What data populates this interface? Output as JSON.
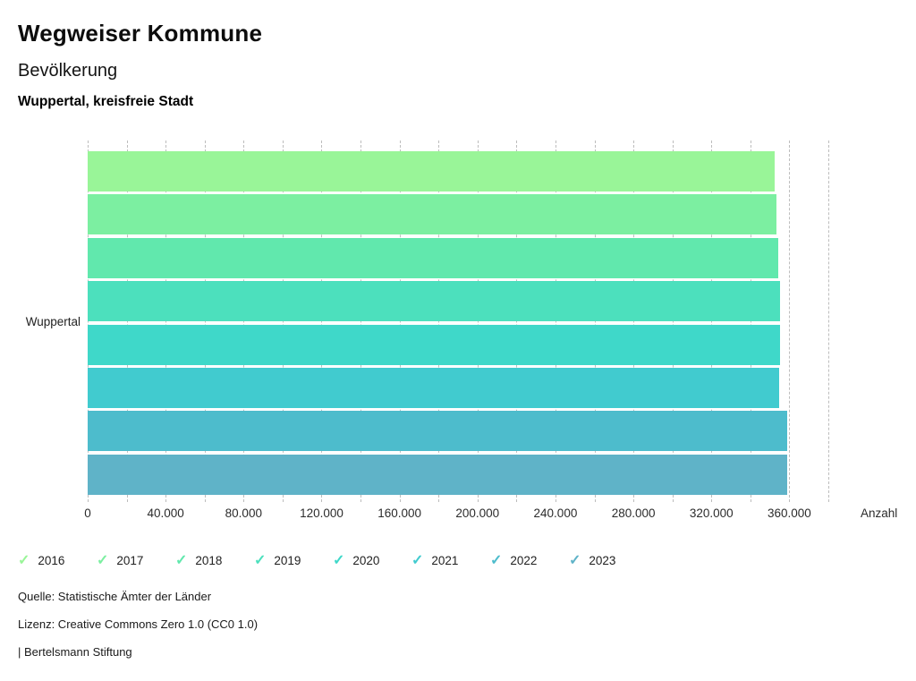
{
  "header": {
    "title": "Wegweiser Kommune",
    "subtitle": "Bevölkerung",
    "region": "Wuppertal, kreisfreie Stadt"
  },
  "chart_data": {
    "type": "bar",
    "orientation": "horizontal",
    "title": "Bevölkerung",
    "category": "Wuppertal",
    "series": [
      {
        "name": "2016",
        "value": 352400,
        "color": "#99f598"
      },
      {
        "name": "2017",
        "value": 353600,
        "color": "#7cefa1"
      },
      {
        "name": "2018",
        "value": 354400,
        "color": "#61e8ad"
      },
      {
        "name": "2019",
        "value": 355100,
        "color": "#4ce0bd"
      },
      {
        "name": "2020",
        "value": 355000,
        "color": "#3fd8c9"
      },
      {
        "name": "2021",
        "value": 354700,
        "color": "#41cbcf"
      },
      {
        "name": "2022",
        "value": 358900,
        "color": "#4dbccc"
      },
      {
        "name": "2023",
        "value": 359000,
        "color": "#5fb3c8"
      }
    ],
    "xlabel": "Anzahl",
    "ylabel": "Wuppertal",
    "xlim": [
      0,
      380000
    ],
    "x_ticks": [
      {
        "value": 0,
        "label": "0"
      },
      {
        "value": 40000,
        "label": "40.000"
      },
      {
        "value": 80000,
        "label": "80.000"
      },
      {
        "value": 120000,
        "label": "120.000"
      },
      {
        "value": 160000,
        "label": "160.000"
      },
      {
        "value": 200000,
        "label": "200.000"
      },
      {
        "value": 240000,
        "label": "240.000"
      },
      {
        "value": 280000,
        "label": "280.000"
      },
      {
        "value": 320000,
        "label": "320.000"
      },
      {
        "value": 360000,
        "label": "360.000"
      }
    ],
    "minor_grid_step": 20000,
    "grid_style": "dashed",
    "legend_position": "bottom",
    "legend_marker": "check"
  },
  "footer": {
    "source": "Quelle: Statistische Ämter der Länder",
    "license": "Lizenz: Creative Commons Zero 1.0 (CC0 1.0)",
    "attribution": "| Bertelsmann Stiftung"
  }
}
